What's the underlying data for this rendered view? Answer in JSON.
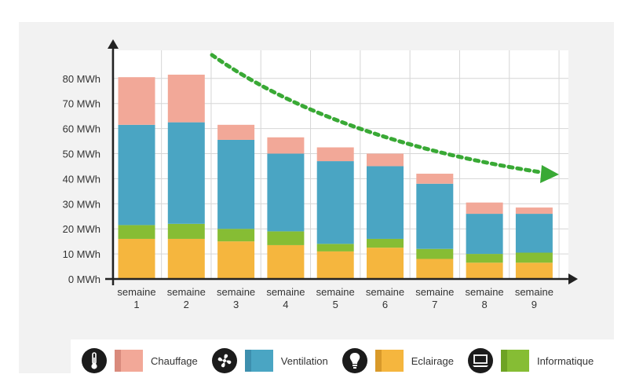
{
  "chart_data": {
    "type": "bar",
    "stacked": true,
    "categories": [
      [
        "semaine",
        "1"
      ],
      [
        "semaine",
        "2"
      ],
      [
        "semaine",
        "3"
      ],
      [
        "semaine",
        "4"
      ],
      [
        "semaine",
        "5"
      ],
      [
        "semaine",
        "6"
      ],
      [
        "semaine",
        "7"
      ],
      [
        "semaine",
        "8"
      ],
      [
        "semaine",
        "9"
      ]
    ],
    "series": [
      {
        "name": "Eclairage",
        "color": "#f5b63e",
        "color_dark": "#d99a2a",
        "icon": "lightbulb-icon",
        "values": [
          16,
          16,
          15,
          13.5,
          11,
          12.5,
          8,
          6.5,
          6.5
        ]
      },
      {
        "name": "Informatique",
        "color": "#86bd34",
        "color_dark": "#6ea324",
        "icon": "computer-icon",
        "values": [
          5.5,
          6,
          5,
          5.5,
          3,
          3.5,
          4,
          3.5,
          4
        ]
      },
      {
        "name": "Ventilation",
        "color": "#4aa5c3",
        "color_dark": "#3d8fae",
        "icon": "fan-icon",
        "values": [
          40,
          40.5,
          35.5,
          31,
          33,
          29,
          26,
          16,
          15.5
        ]
      },
      {
        "name": "Chauffage",
        "color": "#f2a898",
        "color_dark": "#d98a7c",
        "icon": "thermometer-icon",
        "values": [
          19,
          19,
          6,
          6.5,
          5.5,
          5,
          4,
          4.5,
          2.5
        ]
      }
    ],
    "y_ticks": [
      "0 MWh",
      "10 MWh",
      "20 MWh",
      "30 MWh",
      "40 MWh",
      "50 MWh",
      "60 MWh",
      "70 MWh",
      "80 MWh"
    ],
    "ylim": [
      0,
      90
    ],
    "grid": true,
    "trend_arrow_color": "#39a935",
    "legend_order": [
      "Chauffage",
      "Ventilation",
      "Eclairage",
      "Informatique"
    ]
  }
}
